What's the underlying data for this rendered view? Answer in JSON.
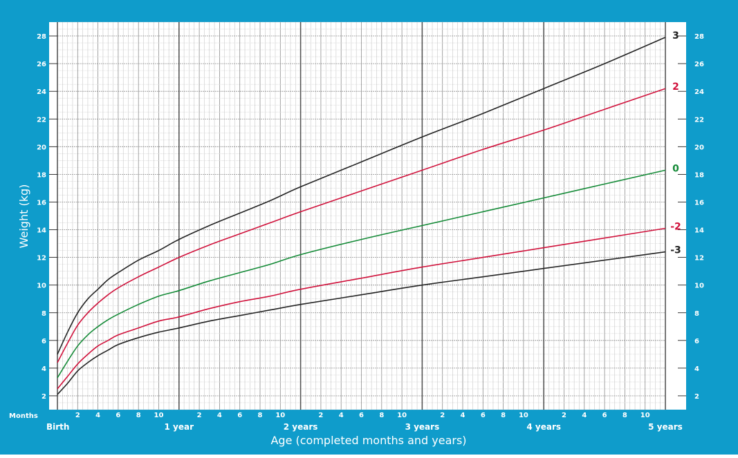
{
  "chart_data": {
    "type": "line",
    "title": "",
    "xlabel": "Age (completed months and years)",
    "ylabel": "Weight (kg)",
    "x_unit": "months",
    "xlim": [
      0,
      60
    ],
    "ylim": [
      1,
      29
    ],
    "y_ticks": [
      2,
      4,
      6,
      8,
      10,
      12,
      14,
      16,
      18,
      20,
      22,
      24,
      26,
      28
    ],
    "months_label": "Months",
    "month_tick_labels": [
      "2",
      "4",
      "6",
      "8",
      "10"
    ],
    "year_labels": [
      "Birth",
      "1 year",
      "2 years",
      "3 years",
      "4 years",
      "5 years"
    ],
    "grid": true,
    "colors": {
      "frame": "#0f9ccb",
      "grid_minor": "#c8c8c8",
      "grid_major": "#8c8c8c",
      "grid_year": "#555555"
    },
    "series": [
      {
        "name": "3",
        "color": "#222222",
        "x": [
          0,
          1,
          2,
          3,
          4,
          5,
          6,
          8,
          10,
          12,
          15,
          18,
          21,
          24,
          30,
          36,
          42,
          48,
          54,
          60
        ],
        "values": [
          5.0,
          6.6,
          8.0,
          9.0,
          9.7,
          10.4,
          10.9,
          11.8,
          12.5,
          13.3,
          14.3,
          15.2,
          16.1,
          17.1,
          18.9,
          20.7,
          22.4,
          24.2,
          26.0,
          27.9
        ]
      },
      {
        "name": "2",
        "color": "#d0103a",
        "x": [
          0,
          1,
          2,
          3,
          4,
          5,
          6,
          8,
          10,
          12,
          15,
          18,
          21,
          24,
          30,
          36,
          42,
          48,
          54,
          60
        ],
        "values": [
          4.4,
          5.8,
          7.1,
          8.0,
          8.7,
          9.3,
          9.8,
          10.6,
          11.3,
          12.0,
          12.9,
          13.7,
          14.5,
          15.3,
          16.8,
          18.3,
          19.8,
          21.2,
          22.7,
          24.2
        ]
      },
      {
        "name": "0",
        "color": "#138a36",
        "x": [
          0,
          1,
          2,
          3,
          4,
          5,
          6,
          8,
          10,
          12,
          15,
          18,
          21,
          24,
          30,
          36,
          42,
          48,
          54,
          60
        ],
        "values": [
          3.3,
          4.5,
          5.6,
          6.4,
          7.0,
          7.5,
          7.9,
          8.6,
          9.2,
          9.6,
          10.3,
          10.9,
          11.5,
          12.2,
          13.3,
          14.3,
          15.3,
          16.3,
          17.3,
          18.3
        ]
      },
      {
        "name": "-2",
        "color": "#d0103a",
        "x": [
          0,
          1,
          2,
          3,
          4,
          5,
          6,
          8,
          10,
          12,
          15,
          18,
          21,
          24,
          30,
          36,
          42,
          48,
          54,
          60
        ],
        "values": [
          2.5,
          3.4,
          4.3,
          5.0,
          5.6,
          6.0,
          6.4,
          6.9,
          7.4,
          7.7,
          8.3,
          8.8,
          9.2,
          9.7,
          10.5,
          11.3,
          12.0,
          12.7,
          13.4,
          14.1
        ]
      },
      {
        "name": "-3",
        "color": "#222222",
        "x": [
          0,
          1,
          2,
          3,
          4,
          5,
          6,
          8,
          10,
          12,
          15,
          18,
          21,
          24,
          30,
          36,
          42,
          48,
          54,
          60
        ],
        "values": [
          2.1,
          2.9,
          3.8,
          4.4,
          4.9,
          5.3,
          5.7,
          6.2,
          6.6,
          6.9,
          7.4,
          7.8,
          8.2,
          8.6,
          9.3,
          10.0,
          10.6,
          11.2,
          11.8,
          12.4
        ]
      }
    ]
  }
}
